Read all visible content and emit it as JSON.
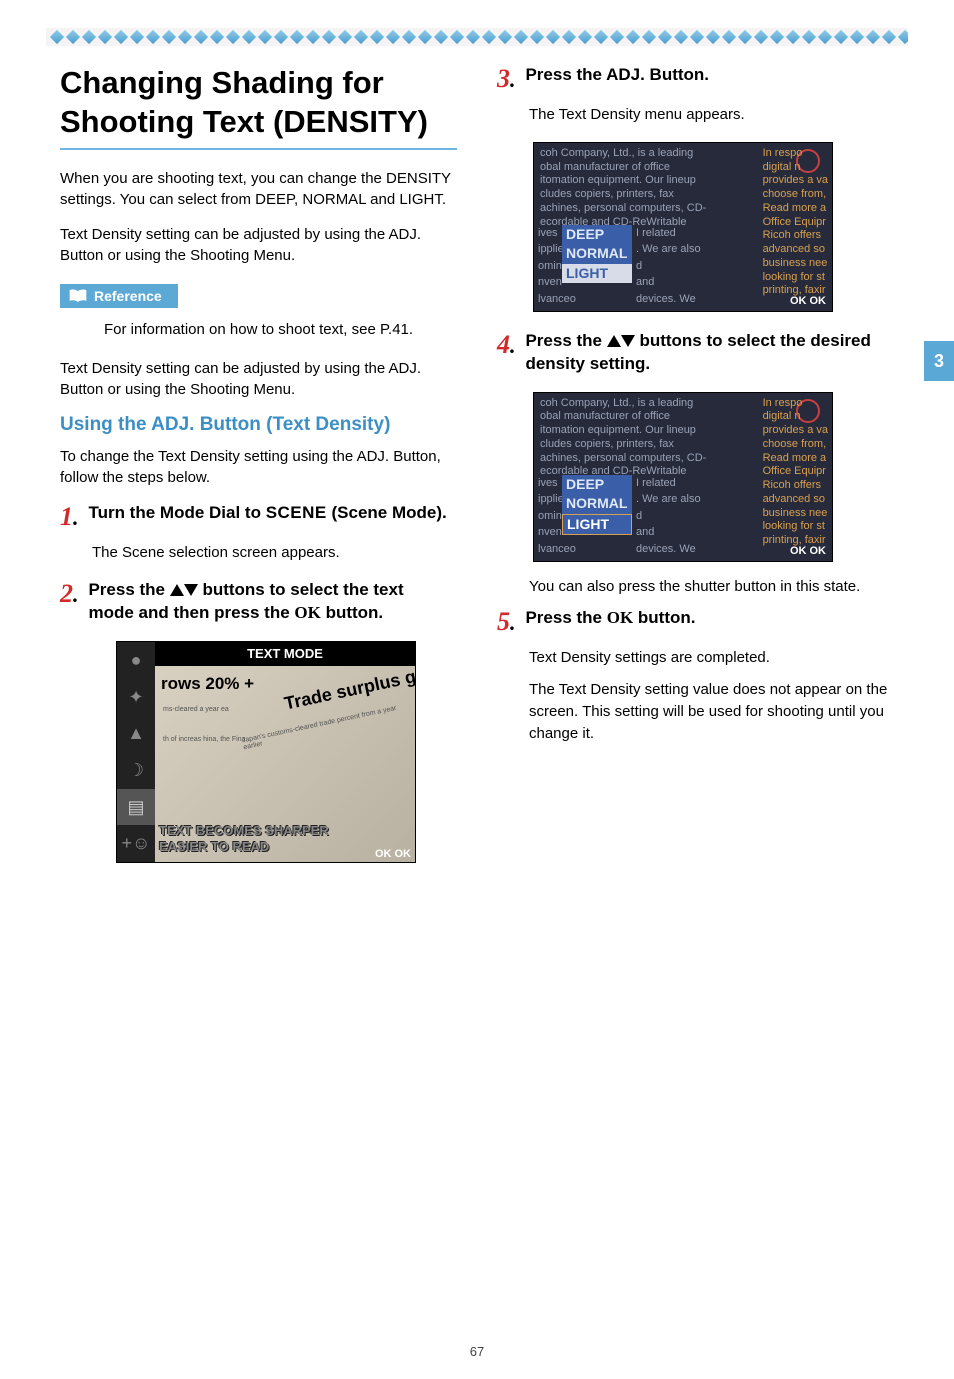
{
  "page_number": "67",
  "side_tab": "3",
  "diamond_border": {
    "count": 56,
    "bg": "#f4f4f4",
    "diamond_gradient_from": "#8fc9e8",
    "diamond_gradient_to": "#4a9fd0"
  },
  "left": {
    "heading": "Changing Shading for Shooting Text (DENSITY)",
    "p1": "When you are shooting text, you can change the DENSITY settings. You can select from DEEP, NORMAL and LIGHT.",
    "p2": "Text Density setting can be adjusted by using the ADJ. Button or using the Shooting Menu.",
    "reference_label": "Reference",
    "reference_text": "For information on how to shoot text, see P.41.",
    "p3": "Text Density setting can be adjusted by using the ADJ. Button or using the Shooting Menu.",
    "subheading": "Using the ADJ. Button (Text Density)",
    "p4": "To change the Text Density setting using the ADJ. Button, follow the steps below.",
    "step1_pre": "Turn the Mode Dial to ",
    "step1_scene": "SCENE",
    "step1_post": " (Scene Mode).",
    "step1_sub": "The Scene selection screen appears.",
    "step2_a": "Press the ",
    "step2_b": " buttons to select the text mode and then press the ",
    "step2_ok": "OK",
    "step2_c": " button.",
    "lcd1": {
      "title": "TEXT MODE",
      "big": "rows 20% +",
      "tilt": "Trade surplus gro",
      "tiny1": "ms-cleared a year ea",
      "tiny2": "th of increas hina, the Fina",
      "tiny3": "Japan's customs-cleared trade percent from a year earlier",
      "outline1": "TEXT BECOMES SHARPER",
      "outline2": "EASIER TO READ",
      "ok": "OK OK",
      "icons": [
        "●",
        "✦",
        "▲",
        "☽",
        "▤",
        "+☺"
      ]
    }
  },
  "right": {
    "step3": "Press the ADJ. Button.",
    "step3_sub": "The Text Density menu appears.",
    "lcd2": {
      "bg_left_lines": [
        "coh Company, Ltd., is a leading",
        "obal manufacturer of office",
        "itomation equipment. Our lineup",
        "cludes copiers, printers, fax",
        "achines, personal computers, CD-",
        "ecordable and CD-ReWritable"
      ],
      "bg_left_frag": [
        "ives",
        "ipplie",
        "omin",
        "nven",
        "lvanceo"
      ],
      "bg_mid_frag": [
        "I related",
        ". We are also",
        "d",
        "and",
        "devices. We"
      ],
      "right_lines": [
        "In respo",
        "digital n",
        "provides a va",
        "choose from,",
        "Read more a",
        "Office Equipr",
        "Ricoh offers",
        "advanced so",
        "business nee",
        "looking for st",
        "printing, faxir"
      ],
      "menu": {
        "deep": "DEEP",
        "normal": "NORMAL",
        "light": "LIGHT"
      },
      "ok": "OK OK"
    },
    "step4_a": "Press the ",
    "step4_b": " buttons to select the desired density setting.",
    "step4_sub": "You can also press the shutter button in this state.",
    "step5_a": "Press the ",
    "step5_ok": "OK",
    "step5_b": " button.",
    "step5_sub1": "Text Density settings are completed.",
    "step5_sub2": "The Text Density setting value does not appear on the screen. This setting will be used for shooting until you change it."
  },
  "colors": {
    "accent_blue": "#5aa8d6",
    "heading_blue": "#3c8fc4",
    "step_red": "#d12a2a"
  }
}
